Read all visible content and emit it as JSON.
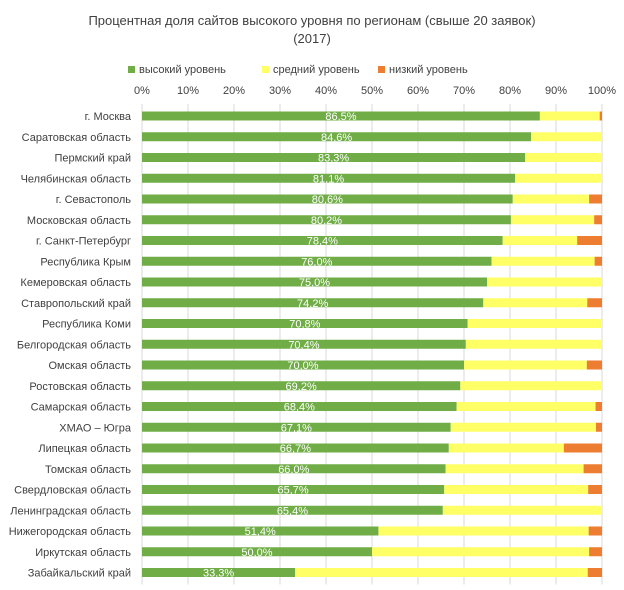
{
  "chart_data": {
    "type": "bar",
    "orientation": "horizontal",
    "stacked": "percent",
    "title": "Процентная доля сайтов высокого уровня по регионам (свыше 20 заявок)",
    "subtitle": "(2017)",
    "xlim": [
      0,
      100
    ],
    "x_ticks": [
      "0%",
      "10%",
      "20%",
      "30%",
      "40%",
      "50%",
      "60%",
      "70%",
      "80%",
      "90%",
      "100%"
    ],
    "grid": "vertical",
    "legend_position": "top",
    "categories": [
      "г. Москва",
      "Саратовская область",
      "Пермский край",
      "Челябинская область",
      "г. Севастополь",
      "Московская область",
      "г. Санкт-Петербург",
      "Республика Крым",
      "Кемеровская область",
      "Ставропольский край",
      "Республика Коми",
      "Белгородская область",
      "Омская область",
      "Ростовская область",
      "Самарская область",
      "ХМАО – Югра",
      "Липецкая область",
      "Томская область",
      "Свердловская область",
      "Ленинградская область",
      "Нижегородская область",
      "Иркутская область",
      "Забайкальский край"
    ],
    "series": [
      {
        "name": "высокий уровень",
        "color": "#70AD47",
        "values": [
          86.5,
          84.6,
          83.3,
          81.1,
          80.6,
          80.2,
          78.4,
          76.0,
          75.0,
          74.2,
          70.8,
          70.4,
          70.0,
          69.2,
          68.4,
          67.1,
          66.7,
          66.0,
          65.7,
          65.4,
          51.4,
          50.0,
          33.3
        ]
      },
      {
        "name": "средний уровень",
        "color": "#FFFF66",
        "values": [
          13.0,
          15.4,
          16.7,
          18.9,
          16.6,
          18.1,
          16.2,
          22.4,
          25.0,
          22.6,
          29.2,
          29.6,
          26.7,
          30.8,
          30.2,
          31.6,
          25.0,
          30.0,
          31.3,
          34.6,
          45.7,
          47.2,
          63.6
        ]
      },
      {
        "name": "низкий уровень",
        "color": "#ED7D31",
        "values": [
          0.5,
          0.0,
          0.0,
          0.0,
          2.8,
          1.7,
          5.4,
          1.6,
          0.0,
          3.2,
          0.0,
          0.0,
          3.3,
          0.0,
          1.4,
          1.3,
          8.3,
          4.0,
          3.0,
          0.0,
          2.9,
          2.8,
          3.1
        ]
      }
    ],
    "data_labels": [
      "86,5%",
      "84,6%",
      "83,3%",
      "81,1%",
      "80,6%",
      "80,2%",
      "78,4%",
      "76,0%",
      "75,0%",
      "74,2%",
      "70,8%",
      "70,4%",
      "70,0%",
      "69,2%",
      "68,4%",
      "67,1%",
      "66,7%",
      "66,0%",
      "65,7%",
      "65,4%",
      "51,4%",
      "50,0%",
      "33,3%"
    ]
  }
}
